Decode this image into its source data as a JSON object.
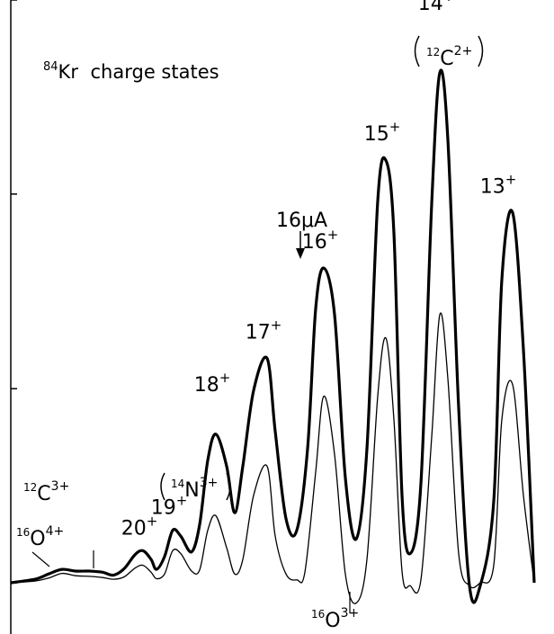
{
  "chart_data": {
    "type": "line",
    "title": "",
    "annotation_title": {
      "superscript": "84",
      "base": "Kr",
      "rest": "charge states"
    },
    "xlabel": "",
    "ylabel": "",
    "x_range": [
      0,
      100
    ],
    "y_range": [
      0,
      100
    ],
    "y_ticks": [
      0,
      33.3,
      66.7,
      100
    ],
    "grid": false,
    "legend": "none",
    "series": [
      {
        "style": "thick",
        "x": [
          0,
          4.5,
          7,
          9.5,
          12,
          14.5,
          17,
          19,
          21,
          23,
          24.5,
          26,
          27,
          28.5,
          30,
          31.5,
          33.5,
          35,
          36.5,
          38,
          40,
          41.5,
          43,
          45,
          47.5,
          49,
          51,
          53,
          55,
          56.5,
          58,
          60,
          62,
          64,
          66,
          68,
          69.5,
          71,
          72.5,
          74,
          76,
          78,
          79.5,
          81,
          83,
          85,
          87,
          89.5,
          91,
          93,
          95,
          97
        ],
        "y": [
          0,
          0.6,
          1.5,
          2.3,
          2.0,
          2.0,
          1.8,
          1.3,
          2.4,
          4.8,
          5.5,
          4.0,
          2.3,
          4.5,
          9.0,
          8.0,
          5.3,
          10.0,
          21.0,
          25.5,
          20.0,
          12.0,
          20.0,
          33.0,
          38.5,
          26.0,
          11.0,
          9.0,
          23.0,
          47.0,
          54.0,
          46.0,
          18.0,
          7.5,
          23.0,
          65.5,
          72.5,
          60.0,
          15.0,
          5.0,
          17.0,
          65.0,
          87.5,
          76.0,
          30.0,
          -0.5,
          -0.5,
          14.0,
          52.0,
          63.5,
          40.0,
          0.0
        ]
      },
      {
        "style": "thin",
        "x": [
          0,
          4.5,
          7,
          9.5,
          12,
          14.5,
          17,
          19,
          21,
          23,
          24.5,
          26,
          27,
          28.5,
          30,
          31.5,
          33.5,
          35,
          36.5,
          38,
          40,
          41.5,
          43,
          45,
          47.5,
          49,
          51,
          53,
          54.5,
          56.5,
          58,
          60,
          62,
          64,
          66,
          68,
          69.5,
          71,
          72.5,
          74,
          76,
          78,
          79.5,
          81,
          83,
          85,
          87,
          89.5,
          91,
          93,
          95,
          97
        ],
        "y": [
          0,
          0.3,
          0.8,
          1.6,
          1.2,
          1.1,
          0.9,
          0.6,
          1.0,
          2.5,
          3.0,
          1.8,
          0.7,
          1.5,
          5.5,
          5.0,
          2.0,
          2.2,
          9.0,
          11.5,
          6.0,
          1.5,
          4.0,
          15.0,
          20.0,
          8.0,
          1.5,
          0.5,
          1.8,
          19.0,
          32.0,
          22.0,
          1.5,
          -3.5,
          4.0,
          32.0,
          42.0,
          28.0,
          2.0,
          -0.5,
          0.5,
          25.0,
          46.0,
          35.0,
          5.0,
          -0.5,
          0.0,
          3.0,
          28.0,
          34.0,
          15.0,
          0.0
        ]
      }
    ],
    "peak_labels": [
      {
        "text": "13",
        "sup": "+",
        "x": 91,
        "y": 63.5
      },
      {
        "text": "14",
        "sup": "+",
        "x": 79.5,
        "y": 87.5
      },
      {
        "text": "15",
        "sup": "+",
        "x": 69.5,
        "y": 72.5
      },
      {
        "text": "16",
        "sup": "+",
        "x": 58,
        "y": 54
      },
      {
        "text": "17",
        "sup": "+",
        "x": 47.5,
        "y": 38.5
      },
      {
        "text": "18",
        "sup": "+",
        "x": 38,
        "y": 25.5
      },
      {
        "text": "19",
        "sup": "+",
        "x": 30,
        "y": 9
      },
      {
        "text": "20",
        "sup": "+",
        "x": 24.5,
        "y": 5.5
      }
    ],
    "annotations": {
      "current": "16μA",
      "c12_2plus": {
        "pre": "12",
        "base": "C",
        "sup": "2+"
      },
      "n14_3plus": {
        "pre": "14",
        "base": "N",
        "sup": "3+"
      },
      "c12_3plus": {
        "pre": "12",
        "base": "C",
        "sup": "3+"
      },
      "o16_4plus": {
        "pre": "16",
        "base": "O",
        "sup": "4+"
      },
      "o16_3plus": {
        "pre": "16",
        "base": "O",
        "sup": "3+"
      }
    }
  }
}
